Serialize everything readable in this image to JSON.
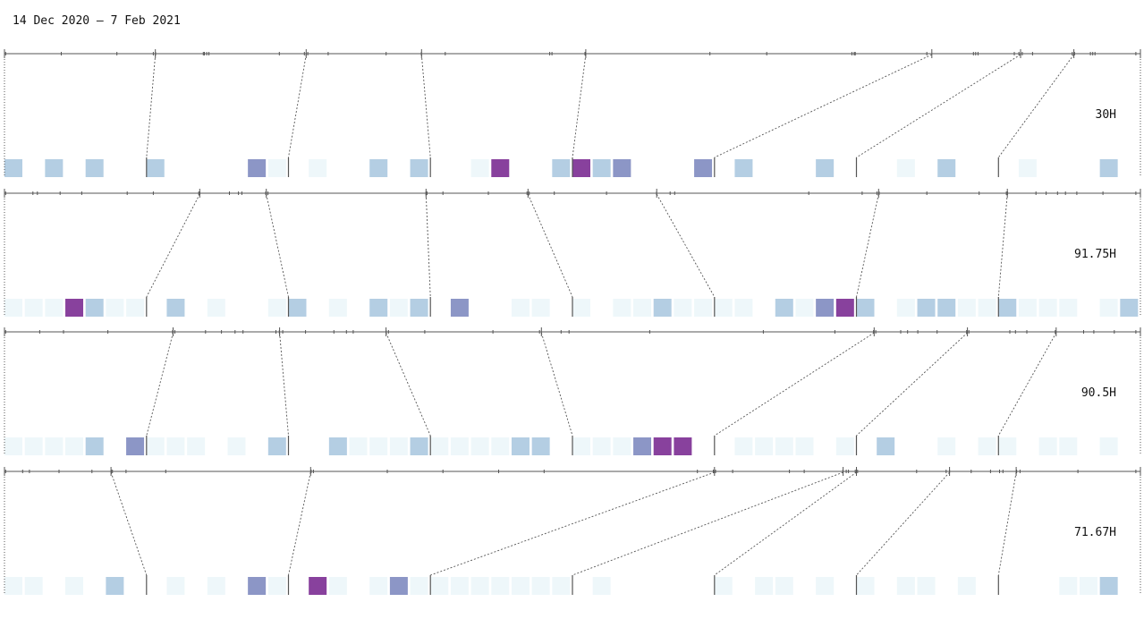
{
  "title": "14 Dec 2020 – 7 Feb 2021",
  "colors": {
    "axis": "#555555",
    "connector": "#555555",
    "levels": [
      "#eef7fa",
      "#b4cee3",
      "#8c96c6",
      "#88419d"
    ]
  },
  "chart_data": {
    "type": "heatmap",
    "title": "14 Dec 2020 – 7 Feb 2021",
    "cells_per_row": 56,
    "rows": [
      {
        "label": "30H",
        "boundaries": [
          7,
          14,
          21,
          28,
          35,
          42,
          49
        ],
        "boundary_positions": [
          0.1328,
          0.2656,
          0.3672,
          0.5117,
          0.8164,
          0.8945,
          0.9414
        ],
        "timeline_events": [
          0.001,
          0.05,
          0.099,
          0.131,
          0.133,
          0.175,
          0.176,
          0.178,
          0.18,
          0.242,
          0.264,
          0.267,
          0.285,
          0.336,
          0.367,
          0.388,
          0.48,
          0.482,
          0.511,
          0.621,
          0.671,
          0.746,
          0.748,
          0.749,
          0.812,
          0.853,
          0.855,
          0.857,
          0.889,
          0.893,
          0.896,
          0.905,
          0.94,
          0.942,
          0.956,
          0.958,
          0.96,
          0.996
        ],
        "levels": [
          2,
          0,
          2,
          0,
          2,
          0,
          0,
          2,
          0,
          0,
          0,
          0,
          3,
          1,
          0,
          1,
          0,
          0,
          2,
          0,
          2,
          0,
          0,
          1,
          4,
          0,
          0,
          2,
          4,
          2,
          3,
          0,
          0,
          0,
          3,
          0,
          2,
          0,
          0,
          0,
          2,
          0,
          0,
          0,
          1,
          0,
          2,
          0,
          0,
          0,
          1,
          0,
          0,
          0,
          2,
          0
        ]
      },
      {
        "label": "91.75H",
        "boundaries": [
          7,
          14,
          21,
          28,
          35,
          42,
          49
        ],
        "boundary_positions": [
          0.1719,
          0.2305,
          0.3711,
          0.4609,
          0.5742,
          0.7695,
          0.8828
        ],
        "timeline_events": [
          0.001,
          0.025,
          0.029,
          0.049,
          0.068,
          0.108,
          0.131,
          0.171,
          0.172,
          0.198,
          0.206,
          0.209,
          0.23,
          0.232,
          0.371,
          0.372,
          0.386,
          0.426,
          0.46,
          0.462,
          0.484,
          0.53,
          0.574,
          0.586,
          0.59,
          0.708,
          0.755,
          0.768,
          0.77,
          0.812,
          0.858,
          0.882,
          0.883,
          0.908,
          0.917,
          0.927,
          0.934,
          0.944,
          0.967,
          0.996
        ],
        "levels": [
          1,
          1,
          1,
          4,
          2,
          1,
          1,
          0,
          2,
          0,
          1,
          0,
          0,
          1,
          2,
          0,
          1,
          0,
          2,
          1,
          2,
          0,
          3,
          0,
          0,
          1,
          1,
          0,
          1,
          0,
          1,
          1,
          2,
          1,
          1,
          1,
          1,
          0,
          2,
          1,
          3,
          4,
          2,
          0,
          1,
          2,
          2,
          1,
          1,
          2,
          1,
          1,
          1,
          0,
          1,
          2
        ]
      },
      {
        "label": "90.5H",
        "boundaries": [
          7,
          14,
          21,
          28,
          35,
          42,
          49
        ],
        "boundary_positions": [
          0.1484,
          0.2422,
          0.3359,
          0.4727,
          0.7656,
          0.8477,
          0.9258
        ],
        "timeline_events": [
          0.001,
          0.031,
          0.052,
          0.091,
          0.148,
          0.15,
          0.177,
          0.191,
          0.203,
          0.21,
          0.239,
          0.242,
          0.245,
          0.265,
          0.29,
          0.301,
          0.307,
          0.336,
          0.338,
          0.37,
          0.43,
          0.471,
          0.49,
          0.497,
          0.568,
          0.668,
          0.731,
          0.765,
          0.767,
          0.789,
          0.795,
          0.804,
          0.821,
          0.847,
          0.849,
          0.885,
          0.89,
          0.9,
          0.925,
          0.95,
          0.959,
          0.977,
          0.996
        ],
        "levels": [
          1,
          1,
          1,
          1,
          2,
          0,
          3,
          1,
          1,
          1,
          0,
          1,
          0,
          2,
          0,
          0,
          2,
          1,
          1,
          1,
          2,
          1,
          1,
          1,
          1,
          2,
          2,
          0,
          1,
          1,
          1,
          3,
          4,
          4,
          0,
          0,
          1,
          1,
          1,
          1,
          0,
          1,
          0,
          2,
          0,
          0,
          1,
          0,
          1,
          1,
          0,
          1,
          1,
          0,
          1,
          0
        ]
      },
      {
        "label": "71.67H",
        "boundaries": [
          7,
          14,
          21,
          28,
          35,
          42,
          49
        ],
        "boundary_positions": [
          0.0938,
          0.2695,
          0.625,
          0.7383,
          0.75,
          0.832,
          0.8906
        ],
        "timeline_events": [
          0.001,
          0.016,
          0.022,
          0.048,
          0.077,
          0.094,
          0.095,
          0.107,
          0.142,
          0.27,
          0.272,
          0.337,
          0.386,
          0.435,
          0.475,
          0.61,
          0.624,
          0.626,
          0.641,
          0.691,
          0.704,
          0.738,
          0.741,
          0.743,
          0.749,
          0.751,
          0.803,
          0.829,
          0.832,
          0.851,
          0.868,
          0.876,
          0.879,
          0.891,
          0.894,
          0.945,
          0.996
        ],
        "levels": [
          1,
          1,
          0,
          1,
          0,
          2,
          0,
          0,
          1,
          0,
          1,
          0,
          3,
          1,
          0,
          4,
          1,
          0,
          1,
          3,
          1,
          1,
          1,
          1,
          1,
          1,
          1,
          1,
          0,
          1,
          0,
          0,
          0,
          0,
          0,
          1,
          0,
          1,
          1,
          0,
          1,
          0,
          1,
          0,
          1,
          1,
          0,
          1,
          0,
          0,
          0,
          0,
          1,
          1,
          2,
          0
        ]
      }
    ]
  }
}
